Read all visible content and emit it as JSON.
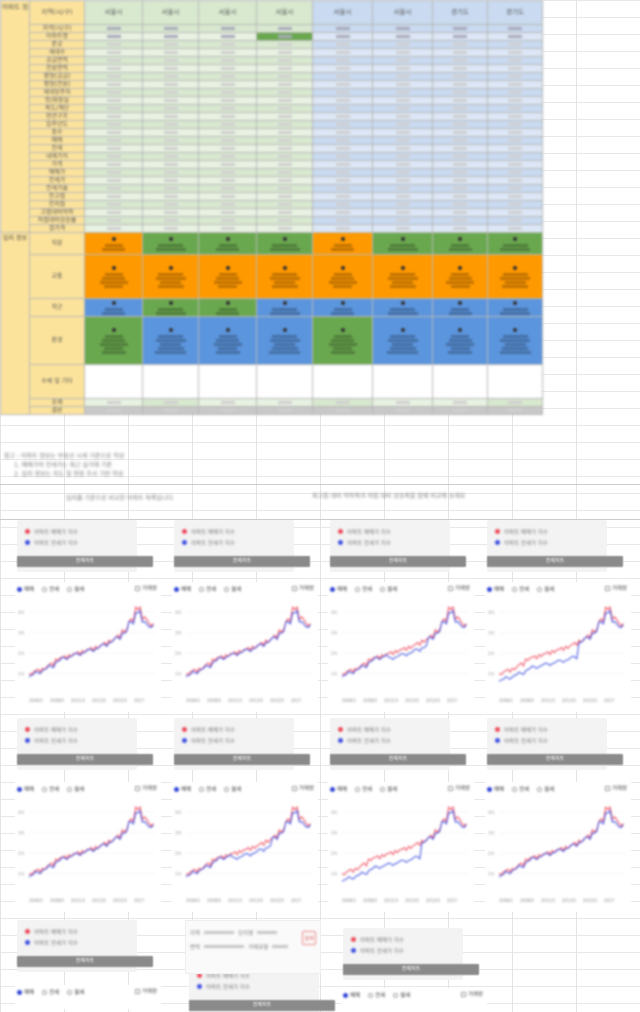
{
  "sheet": {
    "header": {
      "section": "아파트 정보",
      "row_label": "지역(시/구)",
      "regions": [
        "서울시",
        "서울시",
        "서울시",
        "서울시",
        "서울시",
        "서울시",
        "경기도",
        "경기도"
      ]
    },
    "section1_label": "아파트 정보",
    "section2_label": "입지 정보",
    "apt_rows": [
      "지역(시/구)",
      "아파트명",
      "준공",
      "세대수",
      "공급면적",
      "전용면적",
      "평형(공급)",
      "평형(전용)",
      "세대당주차",
      "방/화장실",
      "복도/계단",
      "현관구조",
      "입주년도",
      "층수",
      "매매",
      "전세",
      "내재가치",
      "가격",
      "매매가",
      "전세가",
      "전세가율",
      "전고점",
      "전저점",
      "고점대비하락",
      "저점대비상승률",
      "갭가격"
    ],
    "loc_rows": [
      "직장",
      "교통",
      "학군",
      "환경",
      "수제 및 기타"
    ],
    "tail_rows": [
      "호재",
      "결론"
    ],
    "notes": [
      "참고 : 아파트 정보는 부동산 시세 기준으로 작성",
      "1. 매매가와 전세가는 최근 실거래 기준",
      "2. 입지 정보는 지도 및 현장 조사 기반 작성"
    ],
    "note_box_left": "입지를 기준으로 비교한 아파트 목록입니다",
    "note_box_right": "최고점 대비 하락폭과 저점 대비 상승폭을 함께 비교해 보세요"
  },
  "cards": {
    "legend_items": [
      "아파트 매매가 지수",
      "아파트 전세가 지수"
    ],
    "button_label": "전체차트",
    "tabs": [
      "매매",
      "전세",
      "월세"
    ],
    "checkbox_label": "거래량"
  },
  "filter": {
    "labels": [
      "지역",
      "단지명",
      "면적",
      "거래유형"
    ],
    "button": "검색"
  },
  "colors": {
    "sale": "#ee4a5c",
    "rent": "#3f51e0",
    "accent": "#2f43d6"
  },
  "chart_data": {
    "type": "line",
    "x_ticks": [
      "2006/1",
      "2008/5",
      "2011/3",
      "2013/5",
      "2015/5",
      "2017"
    ],
    "series": [
      {
        "values": [
          1.0,
          1.15,
          1.25,
          1.45,
          1.7,
          1.8,
          1.9,
          2.0,
          2.1,
          2.2,
          2.3,
          2.45,
          2.6,
          2.8,
          3.1,
          3.6,
          4.2,
          3.7,
          3.4
        ]
      },
      {
        "values": [
          0.9,
          1.05,
          1.2,
          1.35,
          1.6,
          1.75,
          1.85,
          1.95,
          2.05,
          2.15,
          2.25,
          2.4,
          2.55,
          2.75,
          3.0,
          3.5,
          4.0,
          3.5,
          3.3
        ]
      }
    ]
  }
}
